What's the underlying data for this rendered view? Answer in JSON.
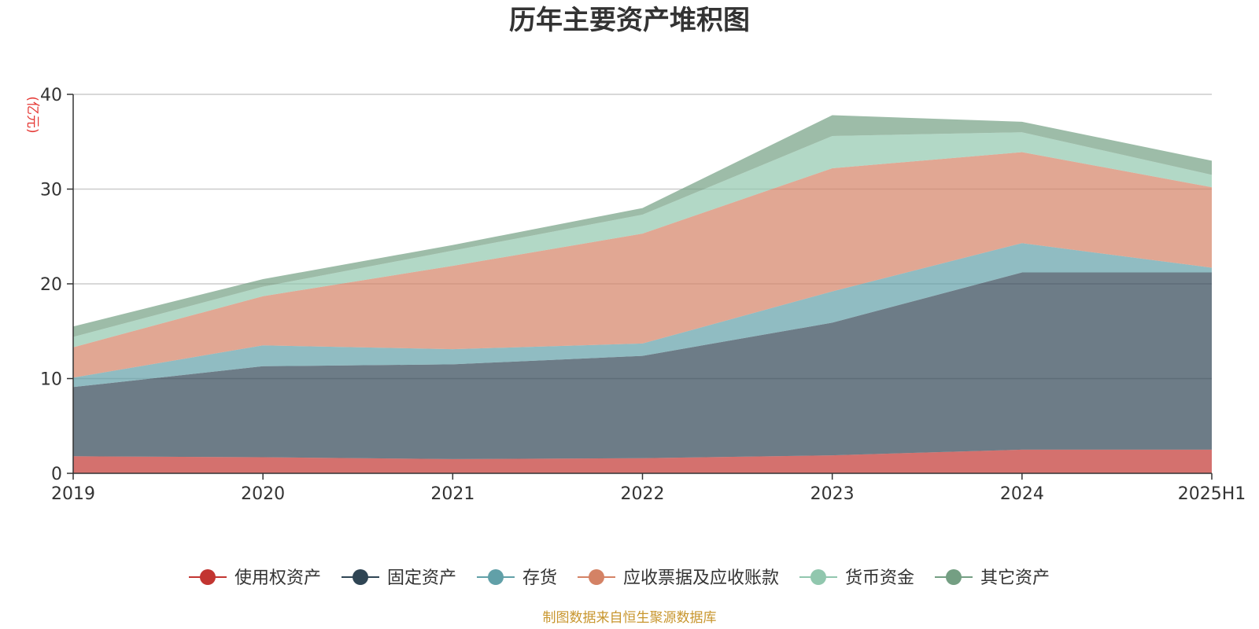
{
  "chart_data": {
    "type": "area",
    "stacked": true,
    "title": "历年主要资产堆积图",
    "ylabel": "(亿元)",
    "xlabel": "",
    "ylim": [
      0,
      40
    ],
    "yticks": [
      0,
      10,
      20,
      30,
      40
    ],
    "categories": [
      "2019",
      "2020",
      "2021",
      "2022",
      "2023",
      "2024",
      "2025H1"
    ],
    "series": [
      {
        "name": "使用权资产",
        "color": "#c23531",
        "values": [
          1.8,
          1.7,
          1.5,
          1.6,
          1.9,
          2.5,
          2.5
        ]
      },
      {
        "name": "固定资产",
        "color": "#2f4554",
        "values": [
          7.3,
          9.6,
          10.0,
          10.8,
          14.0,
          18.7,
          18.7
        ]
      },
      {
        "name": "存货",
        "color": "#61a0a8",
        "values": [
          1.0,
          2.2,
          1.6,
          1.3,
          3.3,
          3.1,
          0.5
        ]
      },
      {
        "name": "应收票据及应收账款",
        "color": "#d48265",
        "values": [
          3.2,
          5.2,
          8.8,
          11.6,
          13.0,
          9.6,
          8.5
        ]
      },
      {
        "name": "货币资金",
        "color": "#91c7ae",
        "values": [
          1.1,
          1.0,
          1.6,
          2.0,
          3.4,
          2.1,
          1.3
        ]
      },
      {
        "name": "其它资产",
        "color": "#749f83",
        "values": [
          1.1,
          0.8,
          0.6,
          0.7,
          2.2,
          1.1,
          1.5
        ]
      }
    ]
  },
  "source": "制图数据来自恒生聚源数据库",
  "colors": {
    "unit": "#e53935",
    "source": "#c8962e",
    "axis": "#333333",
    "grid": "#cccccc"
  }
}
